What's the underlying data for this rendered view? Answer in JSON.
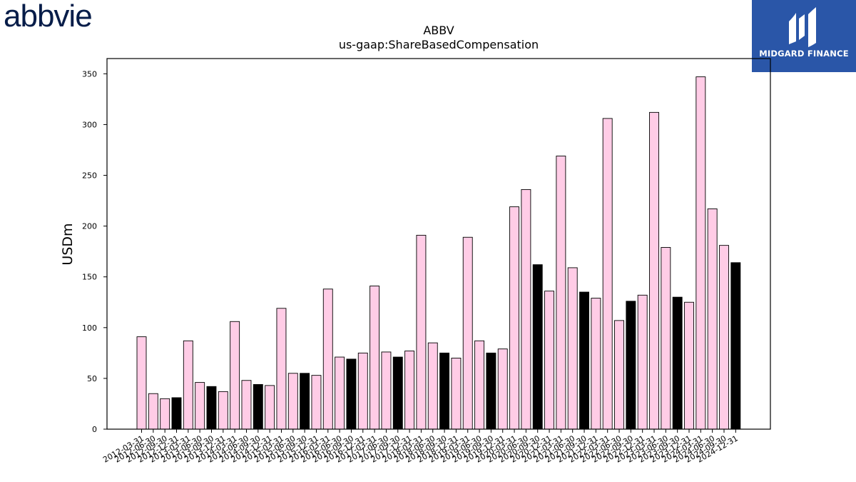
{
  "logos": {
    "left_text": "abbvie",
    "right_text": "MIDGARD FINANCE",
    "right_color": "#2a56a8"
  },
  "chart_data": {
    "type": "bar",
    "title": "ABBV",
    "subtitle": "us-gaap:ShareBasedCompensation",
    "xlabel": "",
    "ylabel": "USDm",
    "ylim": [
      0,
      365
    ],
    "yticks": [
      0,
      50,
      100,
      150,
      200,
      250,
      300,
      350
    ],
    "grid": false,
    "legend": "none",
    "colors": {
      "quarter": "#ffcce6",
      "annual": "#000000",
      "edge": "#000000"
    },
    "categories": [
      "2012-03-31",
      "2012-06-30",
      "2012-09-30",
      "2012-12-31",
      "2013-03-31",
      "2013-06-30",
      "2013-09-30",
      "2013-12-31",
      "2014-03-31",
      "2014-06-30",
      "2014-09-30",
      "2014-12-31",
      "2015-03-31",
      "2015-06-30",
      "2015-09-30",
      "2015-12-31",
      "2016-03-31",
      "2016-06-30",
      "2016-09-30",
      "2016-12-31",
      "2017-03-31",
      "2017-06-30",
      "2017-09-30",
      "2017-12-31",
      "2018-03-31",
      "2018-06-30",
      "2018-09-30",
      "2018-12-31",
      "2019-03-31",
      "2019-06-30",
      "2019-09-30",
      "2019-12-31",
      "2020-03-31",
      "2020-06-30",
      "2020-09-30",
      "2020-12-31",
      "2021-03-31",
      "2021-06-30",
      "2021-09-30",
      "2021-12-31",
      "2022-03-31",
      "2022-06-30",
      "2022-09-30",
      "2022-12-31",
      "2023-03-31",
      "2023-06-30",
      "2023-09-30",
      "2023-12-31",
      "2024-03-31",
      "2024-06-30",
      "2024-09-30",
      "2024-12-31"
    ],
    "values": [
      91,
      35,
      30,
      31,
      87,
      46,
      42,
      37,
      106,
      48,
      44,
      43,
      119,
      55,
      55,
      53,
      138,
      71,
      69,
      75,
      141,
      76,
      71,
      77,
      191,
      85,
      75,
      70,
      189,
      87,
      75,
      79,
      219,
      236,
      162,
      136,
      269,
      159,
      135,
      129,
      306,
      107,
      126,
      132,
      312,
      179,
      130,
      125,
      347,
      217,
      181,
      164
    ],
    "annual_flags": [
      0,
      0,
      0,
      1,
      0,
      0,
      1,
      0,
      0,
      0,
      1,
      0,
      0,
      0,
      1,
      0,
      0,
      0,
      1,
      0,
      0,
      0,
      1,
      0,
      0,
      0,
      1,
      0,
      0,
      0,
      1,
      0,
      0,
      0,
      1,
      0,
      0,
      0,
      1,
      0,
      0,
      0,
      1,
      0,
      0,
      0,
      1,
      0,
      0,
      0,
      0,
      1
    ]
  }
}
